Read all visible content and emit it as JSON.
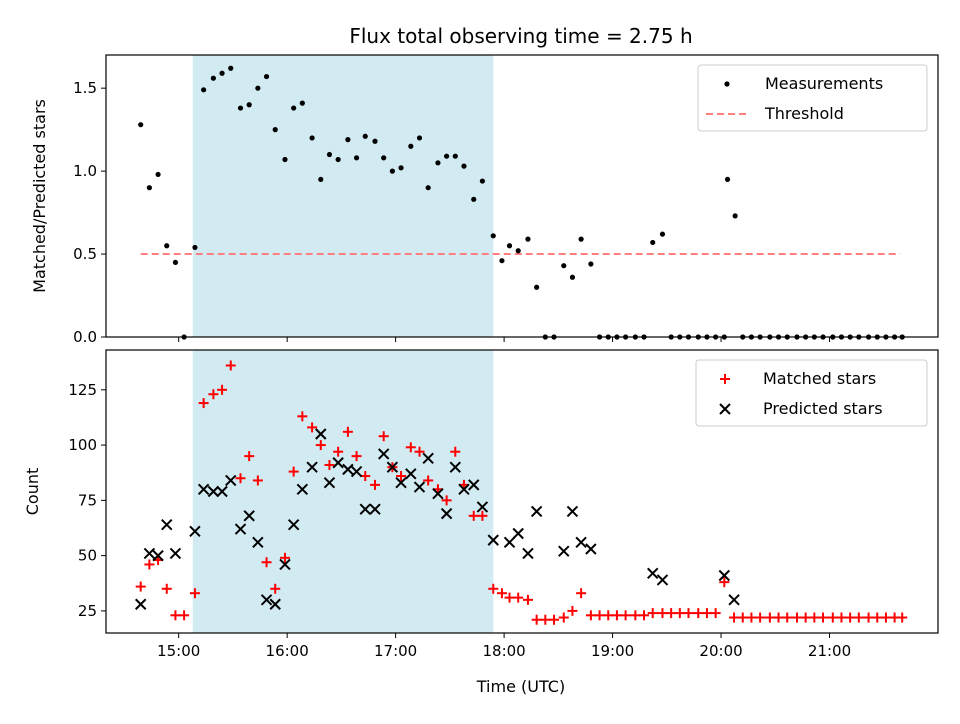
{
  "title": "Flux total observing time = 2.75 h",
  "xlabel": "Time (UTC)",
  "x_ticks": [
    {
      "t": 15.0,
      "label": "15:00"
    },
    {
      "t": 16.0,
      "label": "16:00"
    },
    {
      "t": 17.0,
      "label": "17:00"
    },
    {
      "t": 18.0,
      "label": "18:00"
    },
    {
      "t": 19.0,
      "label": "19:00"
    },
    {
      "t": 20.0,
      "label": "20:00"
    },
    {
      "t": 21.0,
      "label": "21:00"
    }
  ],
  "shaded_interval": {
    "start": 15.13,
    "end": 17.9,
    "color": "#add8e6",
    "alpha": 0.55
  },
  "chart_data": [
    {
      "type": "scatter",
      "ylabel": "Matched/Predicted stars",
      "xlim": [
        14.33,
        22.0
      ],
      "ylim": [
        0,
        1.7
      ],
      "y_ticks": [
        {
          "v": 0.0,
          "label": "0.0"
        },
        {
          "v": 0.5,
          "label": "0.5"
        },
        {
          "v": 1.0,
          "label": "1.0"
        },
        {
          "v": 1.5,
          "label": "1.5"
        }
      ],
      "legend": {
        "position": "top-right",
        "entries": [
          {
            "name": "Measurements",
            "marker": "dot",
            "color": "#000000"
          },
          {
            "name": "Threshold",
            "marker": "dashed",
            "color": "#ff7f7f"
          }
        ]
      },
      "threshold": {
        "name": "Threshold",
        "value": 0.5,
        "x_start": 14.65,
        "x_end": 21.65,
        "color": "#ff7f7f"
      },
      "series": [
        {
          "name": "Measurements",
          "color": "#000000",
          "points": [
            [
              14.65,
              1.28
            ],
            [
              14.73,
              0.9
            ],
            [
              14.81,
              0.98
            ],
            [
              14.89,
              0.55
            ],
            [
              14.97,
              0.45
            ],
            [
              15.05,
              0.0
            ],
            [
              15.15,
              0.54
            ],
            [
              15.23,
              1.49
            ],
            [
              15.32,
              1.56
            ],
            [
              15.4,
              1.59
            ],
            [
              15.48,
              1.62
            ],
            [
              15.57,
              1.38
            ],
            [
              15.65,
              1.4
            ],
            [
              15.73,
              1.5
            ],
            [
              15.81,
              1.57
            ],
            [
              15.89,
              1.25
            ],
            [
              15.98,
              1.07
            ],
            [
              16.06,
              1.38
            ],
            [
              16.14,
              1.41
            ],
            [
              16.23,
              1.2
            ],
            [
              16.31,
              0.95
            ],
            [
              16.39,
              1.1
            ],
            [
              16.47,
              1.07
            ],
            [
              16.56,
              1.19
            ],
            [
              16.64,
              1.08
            ],
            [
              16.72,
              1.21
            ],
            [
              16.81,
              1.18
            ],
            [
              16.89,
              1.08
            ],
            [
              16.97,
              1.0
            ],
            [
              17.05,
              1.02
            ],
            [
              17.14,
              1.15
            ],
            [
              17.22,
              1.2
            ],
            [
              17.3,
              0.9
            ],
            [
              17.39,
              1.05
            ],
            [
              17.47,
              1.09
            ],
            [
              17.55,
              1.09
            ],
            [
              17.63,
              1.03
            ],
            [
              17.72,
              0.83
            ],
            [
              17.8,
              0.94
            ],
            [
              17.9,
              0.61
            ],
            [
              17.98,
              0.46
            ],
            [
              18.05,
              0.55
            ],
            [
              18.13,
              0.52
            ],
            [
              18.22,
              0.59
            ],
            [
              18.3,
              0.3
            ],
            [
              18.38,
              0.0
            ],
            [
              18.46,
              0.0
            ],
            [
              18.55,
              0.43
            ],
            [
              18.63,
              0.36
            ],
            [
              18.71,
              0.59
            ],
            [
              18.8,
              0.44
            ],
            [
              18.88,
              0.0
            ],
            [
              18.96,
              0.0
            ],
            [
              19.04,
              0.0
            ],
            [
              19.12,
              0.0
            ],
            [
              19.21,
              0.0
            ],
            [
              19.29,
              0.0
            ],
            [
              19.37,
              0.57
            ],
            [
              19.46,
              0.62
            ],
            [
              19.54,
              0.0
            ],
            [
              19.62,
              0.0
            ],
            [
              19.7,
              0.0
            ],
            [
              19.79,
              0.0
            ],
            [
              19.87,
              0.0
            ],
            [
              19.95,
              0.0
            ],
            [
              20.03,
              0.0
            ],
            [
              20.06,
              0.95
            ],
            [
              20.13,
              0.73
            ],
            [
              20.2,
              0.0
            ],
            [
              20.28,
              0.0
            ],
            [
              20.36,
              0.0
            ],
            [
              20.45,
              0.0
            ],
            [
              20.53,
              0.0
            ],
            [
              20.61,
              0.0
            ],
            [
              20.7,
              0.0
            ],
            [
              20.78,
              0.0
            ],
            [
              20.86,
              0.0
            ],
            [
              20.94,
              0.0
            ],
            [
              21.03,
              0.0
            ],
            [
              21.11,
              0.0
            ],
            [
              21.19,
              0.0
            ],
            [
              21.27,
              0.0
            ],
            [
              21.36,
              0.0
            ],
            [
              21.44,
              0.0
            ],
            [
              21.52,
              0.0
            ],
            [
              21.6,
              0.0
            ],
            [
              21.67,
              0.0
            ]
          ]
        }
      ]
    },
    {
      "type": "scatter",
      "ylabel": "Count",
      "xlim": [
        14.33,
        22.0
      ],
      "ylim": [
        15,
        143
      ],
      "y_ticks": [
        {
          "v": 25,
          "label": "25"
        },
        {
          "v": 50,
          "label": "50"
        },
        {
          "v": 75,
          "label": "75"
        },
        {
          "v": 100,
          "label": "100"
        },
        {
          "v": 125,
          "label": "125"
        }
      ],
      "legend": {
        "position": "top-right",
        "entries": [
          {
            "name": "Matched stars",
            "marker": "plus",
            "color": "#ff0000"
          },
          {
            "name": "Predicted stars",
            "marker": "x",
            "color": "#000000"
          }
        ]
      },
      "series": [
        {
          "name": "Matched stars",
          "color": "#ff0000",
          "marker": "plus",
          "points": [
            [
              14.65,
              36
            ],
            [
              14.73,
              46
            ],
            [
              14.81,
              48
            ],
            [
              14.89,
              35
            ],
            [
              14.97,
              23
            ],
            [
              15.05,
              23
            ],
            [
              15.15,
              33
            ],
            [
              15.23,
              119
            ],
            [
              15.32,
              123
            ],
            [
              15.4,
              125
            ],
            [
              15.48,
              136
            ],
            [
              15.57,
              85
            ],
            [
              15.65,
              95
            ],
            [
              15.73,
              84
            ],
            [
              15.81,
              47
            ],
            [
              15.89,
              35
            ],
            [
              15.98,
              49
            ],
            [
              16.06,
              88
            ],
            [
              16.14,
              113
            ],
            [
              16.23,
              108
            ],
            [
              16.31,
              100
            ],
            [
              16.39,
              91
            ],
            [
              16.47,
              97
            ],
            [
              16.56,
              106
            ],
            [
              16.64,
              95
            ],
            [
              16.72,
              86
            ],
            [
              16.81,
              82
            ],
            [
              16.89,
              104
            ],
            [
              16.97,
              90
            ],
            [
              17.05,
              86
            ],
            [
              17.14,
              99
            ],
            [
              17.22,
              97
            ],
            [
              17.3,
              84
            ],
            [
              17.39,
              80
            ],
            [
              17.47,
              75
            ],
            [
              17.55,
              97
            ],
            [
              17.63,
              82
            ],
            [
              17.72,
              68
            ],
            [
              17.8,
              68
            ],
            [
              17.9,
              35
            ],
            [
              17.98,
              33
            ],
            [
              18.05,
              31
            ],
            [
              18.13,
              31
            ],
            [
              18.22,
              30
            ],
            [
              18.3,
              21
            ],
            [
              18.38,
              21
            ],
            [
              18.46,
              21
            ],
            [
              18.55,
              22
            ],
            [
              18.63,
              25
            ],
            [
              18.71,
              33
            ],
            [
              18.8,
              23
            ],
            [
              18.88,
              23
            ],
            [
              18.96,
              23
            ],
            [
              19.04,
              23
            ],
            [
              19.12,
              23
            ],
            [
              19.21,
              23
            ],
            [
              19.29,
              23
            ],
            [
              19.37,
              24
            ],
            [
              19.46,
              24
            ],
            [
              19.54,
              24
            ],
            [
              19.62,
              24
            ],
            [
              19.7,
              24
            ],
            [
              19.79,
              24
            ],
            [
              19.87,
              24
            ],
            [
              19.95,
              24
            ],
            [
              20.03,
              38
            ],
            [
              20.12,
              22
            ],
            [
              20.2,
              22
            ],
            [
              20.28,
              22
            ],
            [
              20.36,
              22
            ],
            [
              20.45,
              22
            ],
            [
              20.53,
              22
            ],
            [
              20.61,
              22
            ],
            [
              20.7,
              22
            ],
            [
              20.78,
              22
            ],
            [
              20.86,
              22
            ],
            [
              20.94,
              22
            ],
            [
              21.03,
              22
            ],
            [
              21.11,
              22
            ],
            [
              21.19,
              22
            ],
            [
              21.27,
              22
            ],
            [
              21.36,
              22
            ],
            [
              21.44,
              22
            ],
            [
              21.52,
              22
            ],
            [
              21.6,
              22
            ],
            [
              21.67,
              22
            ]
          ]
        },
        {
          "name": "Predicted stars",
          "color": "#000000",
          "marker": "x",
          "points": [
            [
              14.65,
              28
            ],
            [
              14.73,
              51
            ],
            [
              14.81,
              50
            ],
            [
              14.89,
              64
            ],
            [
              14.97,
              51
            ],
            [
              15.15,
              61
            ],
            [
              15.23,
              80
            ],
            [
              15.32,
              79
            ],
            [
              15.4,
              79
            ],
            [
              15.48,
              84
            ],
            [
              15.57,
              62
            ],
            [
              15.65,
              68
            ],
            [
              15.73,
              56
            ],
            [
              15.81,
              30
            ],
            [
              15.89,
              28
            ],
            [
              15.98,
              46
            ],
            [
              16.06,
              64
            ],
            [
              16.14,
              80
            ],
            [
              16.23,
              90
            ],
            [
              16.31,
              105
            ],
            [
              16.39,
              83
            ],
            [
              16.47,
              92
            ],
            [
              16.56,
              89
            ],
            [
              16.64,
              88
            ],
            [
              16.72,
              71
            ],
            [
              16.81,
              71
            ],
            [
              16.89,
              96
            ],
            [
              16.97,
              90
            ],
            [
              17.05,
              83
            ],
            [
              17.14,
              87
            ],
            [
              17.22,
              81
            ],
            [
              17.3,
              94
            ],
            [
              17.39,
              78
            ],
            [
              17.47,
              69
            ],
            [
              17.55,
              90
            ],
            [
              17.63,
              80
            ],
            [
              17.72,
              82
            ],
            [
              17.8,
              72
            ],
            [
              17.9,
              57
            ],
            [
              18.05,
              56
            ],
            [
              18.13,
              60
            ],
            [
              18.22,
              51
            ],
            [
              18.3,
              70
            ],
            [
              18.55,
              52
            ],
            [
              18.63,
              70
            ],
            [
              18.71,
              56
            ],
            [
              18.8,
              53
            ],
            [
              19.37,
              42
            ],
            [
              19.46,
              39
            ],
            [
              20.03,
              41
            ],
            [
              20.12,
              30
            ]
          ]
        }
      ]
    }
  ]
}
